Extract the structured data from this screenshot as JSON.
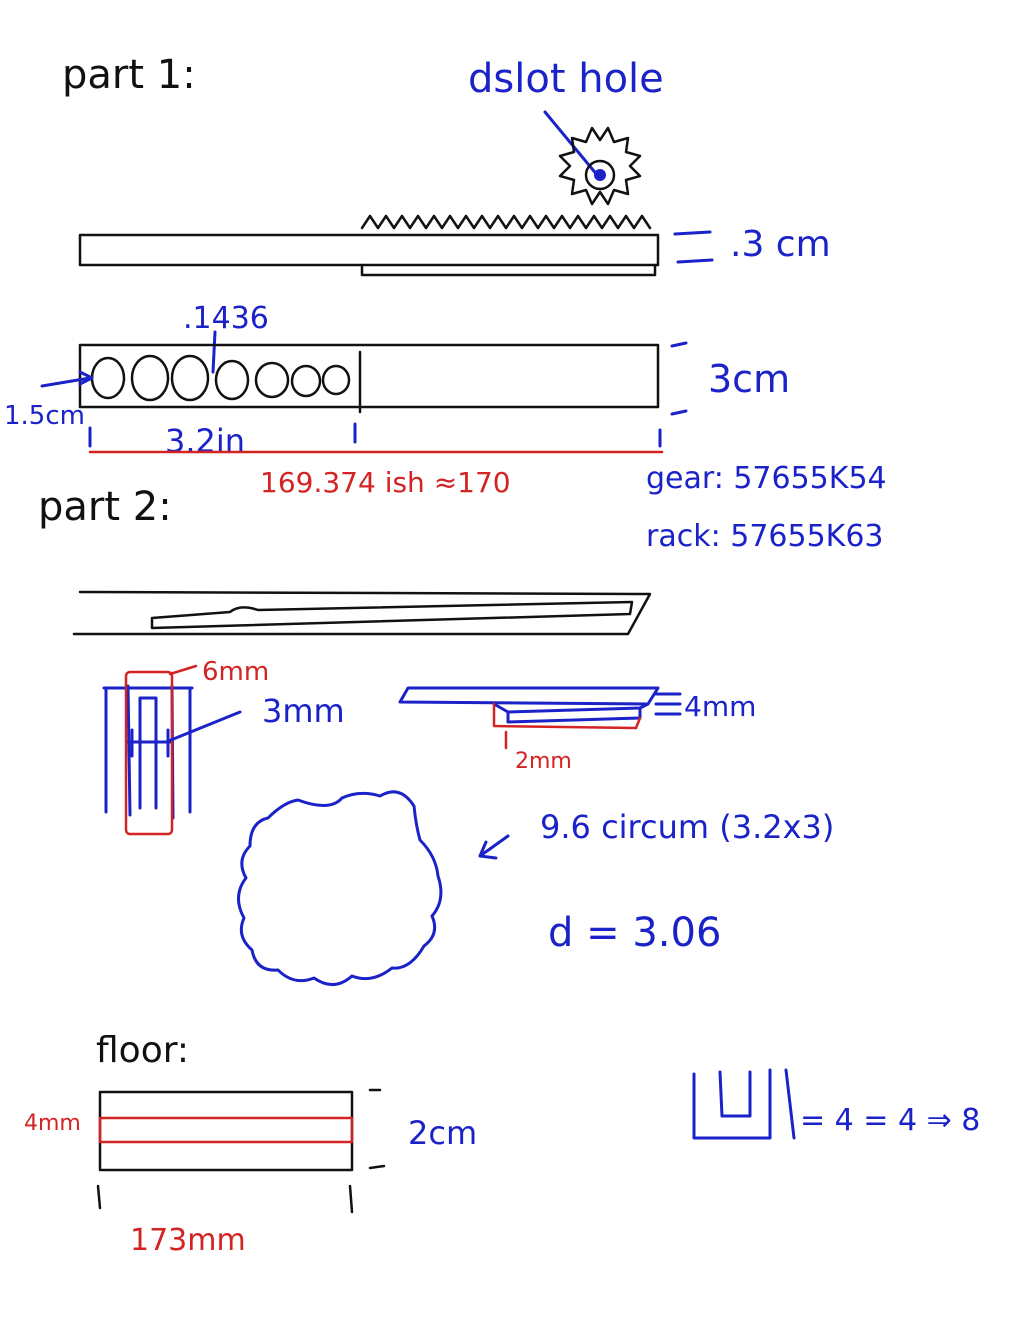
{
  "colors": {
    "ink": "#111111",
    "blue": "#1a22c8",
    "red": "#d32323"
  },
  "part1": {
    "heading": "part 1:",
    "gear_label": "dslot hole",
    "rack_thickness": ".3 cm",
    "hole_spacing": ".1436",
    "bar_height": "3cm",
    "edge_offset": "1.5cm",
    "hole_span": "3.2in",
    "total_length": "169.374 ish ≈170",
    "gear_part": "gear: 57655K54",
    "rack_part": "rack: 57655K63"
  },
  "part2": {
    "heading": "part 2:",
    "width_label": "6mm",
    "slot_label": "3mm",
    "thickness_label": "4mm",
    "step_label": "2mm",
    "circumference": "9.6 circum (3.2x3)",
    "diameter": "d = 3.06"
  },
  "floor": {
    "heading": "floor:",
    "strip_label": "4mm",
    "height_label": "2cm",
    "length_label": "173mm",
    "u_channel": "= 4  = 4  ⇒ 8"
  }
}
